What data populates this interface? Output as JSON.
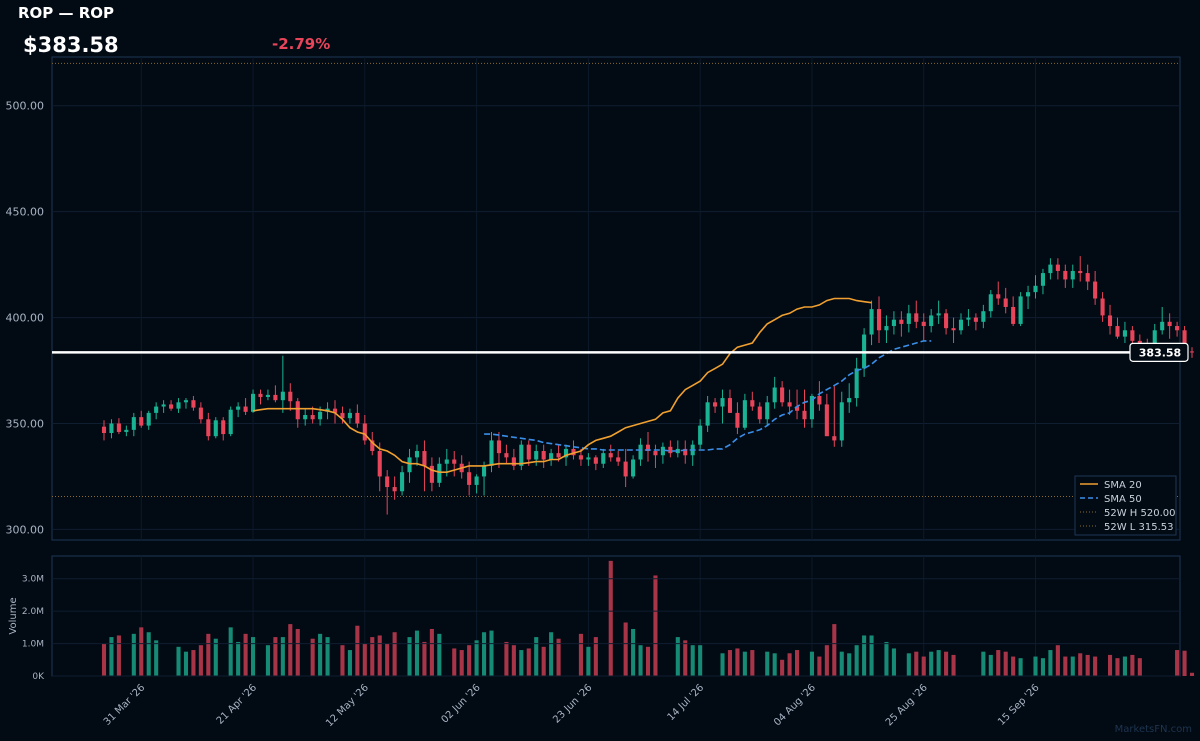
{
  "header": {
    "title": "ROP — ROP",
    "price": "$383.58",
    "change": "-2.79%",
    "change_color": "#e8455a"
  },
  "watermark": "MarketsFN.com",
  "colors": {
    "background": "#020a14",
    "up": "#19b394",
    "down": "#e8455a",
    "sma20": "#f0a030",
    "sma50": "#3a8ee8",
    "last_price_line": "#ffffff",
    "ref_line": "#8a6a30"
  },
  "chart_data": {
    "type": "candlestick",
    "title": "ROP — ROP",
    "ylim": [
      295,
      523
    ],
    "price_ticks": [
      "300.00",
      "350.00",
      "400.00",
      "450.00",
      "500.00"
    ],
    "volume_ylabel": "Volume",
    "volume_ticks": [
      "0K",
      "1.0M",
      "2.0M",
      "3.0M"
    ],
    "volume_ylim": [
      0,
      3.7
    ],
    "date_labels": [
      {
        "label": "31 Mar '26",
        "index": 5
      },
      {
        "label": "21 Apr '26",
        "index": 20
      },
      {
        "label": "12 May '26",
        "index": 35
      },
      {
        "label": "02 Jun '26",
        "index": 50
      },
      {
        "label": "23 Jun '26",
        "index": 65
      },
      {
        "label": "14 Jul '26",
        "index": 80
      },
      {
        "label": "04 Aug '26",
        "index": 95
      },
      {
        "label": "25 Aug '26",
        "index": 110
      },
      {
        "label": "15 Sep '26",
        "index": 125
      }
    ],
    "last_price": 383.58,
    "last_price_label": "383.58",
    "week52_high": 520.0,
    "week52_low": 315.53,
    "legend": [
      {
        "label": "SMA 20",
        "style": "solid",
        "color": "#f0a030"
      },
      {
        "label": "SMA 50",
        "style": "dashed",
        "color": "#3a8ee8"
      },
      {
        "label": "52W H 520.00",
        "style": "dotted",
        "color": "#8a6a30"
      },
      {
        "label": "52W L 315.53",
        "style": "dotted",
        "color": "#8a6a30"
      }
    ],
    "legend_position": "bottom-right",
    "candles": [
      [
        348.5,
        351.5,
        342,
        345.5,
        1.0
      ],
      [
        345.5,
        352,
        343,
        350,
        1.2
      ],
      [
        350,
        352.5,
        345,
        346,
        1.25
      ],
      [
        346,
        349,
        344,
        347,
        0
      ],
      [
        347,
        355,
        344,
        353,
        1.3
      ],
      [
        353,
        356,
        348,
        349,
        1.5
      ],
      [
        349,
        356,
        347,
        355,
        1.35
      ],
      [
        355,
        360,
        352,
        358,
        1.1
      ],
      [
        358,
        361,
        355,
        359,
        0
      ],
      [
        359,
        361,
        356,
        357,
        0
      ],
      [
        357,
        362,
        355,
        360,
        0.9
      ],
      [
        360,
        362,
        357,
        361,
        0.75
      ],
      [
        361,
        363,
        356,
        357.5,
        0.8
      ],
      [
        357.5,
        360,
        350,
        352,
        0.95
      ],
      [
        352,
        355,
        342,
        344,
        1.3
      ],
      [
        344,
        353,
        343,
        351.5,
        1.15
      ],
      [
        351.5,
        353,
        342,
        345,
        0
      ],
      [
        345,
        358,
        344,
        356.5,
        1.5
      ],
      [
        356.5,
        360,
        353,
        358,
        1.05
      ],
      [
        358,
        362,
        354,
        355.5,
        1.3
      ],
      [
        355.5,
        366,
        355,
        364,
        1.2
      ],
      [
        364,
        366,
        359,
        362.5,
        0
      ],
      [
        362.5,
        366,
        361,
        363.5,
        0.95
      ],
      [
        363.5,
        368,
        360,
        361,
        1.2
      ],
      [
        361,
        382,
        355,
        365,
        1.2
      ],
      [
        365,
        369,
        356,
        360.5,
        1.6
      ],
      [
        360.5,
        362,
        348,
        352,
        1.45
      ],
      [
        352,
        357,
        349,
        354,
        0
      ],
      [
        354,
        358,
        350,
        352,
        1.15
      ],
      [
        352,
        358,
        349,
        355.5,
        1.3
      ],
      [
        355.5,
        360,
        352,
        357,
        1.2
      ],
      [
        357,
        361,
        350,
        355,
        0
      ],
      [
        355,
        358,
        350,
        352.5,
        0.95
      ],
      [
        352.5,
        357,
        350,
        355,
        0.8
      ],
      [
        355,
        359,
        348,
        350,
        1.55
      ],
      [
        350,
        354,
        340,
        342,
        1.0
      ],
      [
        342,
        346,
        335,
        337,
        1.2
      ],
      [
        337,
        341,
        318,
        325,
        1.25
      ],
      [
        325,
        328,
        307,
        320,
        1.0
      ],
      [
        320,
        325,
        314,
        318,
        1.35
      ],
      [
        318,
        330,
        316,
        327,
        0
      ],
      [
        327,
        338,
        322,
        334,
        1.2
      ],
      [
        334,
        340,
        330,
        337,
        1.4
      ],
      [
        337,
        342,
        318,
        330,
        1.05
      ],
      [
        330,
        334,
        318,
        322,
        1.45
      ],
      [
        322,
        334,
        320,
        331,
        1.3
      ],
      [
        331,
        338,
        325,
        333,
        0
      ],
      [
        333,
        337,
        325,
        331,
        0.85
      ],
      [
        331,
        335,
        324,
        327,
        0.8
      ],
      [
        327,
        332,
        316,
        321,
        0.95
      ],
      [
        321,
        326,
        317,
        325,
        1.1
      ],
      [
        325,
        332,
        316,
        330,
        1.35
      ],
      [
        330,
        346,
        327,
        342,
        1.4
      ],
      [
        342,
        346,
        329,
        336,
        0
      ],
      [
        336,
        340,
        331,
        334,
        1.05
      ],
      [
        334,
        338,
        328,
        330,
        0.95
      ],
      [
        330,
        342,
        328,
        340,
        0.8
      ],
      [
        340,
        342,
        330,
        333,
        0.85
      ],
      [
        333,
        340,
        330,
        337,
        1.2
      ],
      [
        337,
        340,
        329,
        333,
        0.9
      ],
      [
        333,
        338,
        330,
        336,
        1.35
      ],
      [
        336,
        340,
        332,
        334,
        1.15
      ],
      [
        334,
        340,
        330,
        338,
        0
      ],
      [
        338,
        342,
        333,
        335,
        0
      ],
      [
        335,
        338,
        330,
        333,
        1.3
      ],
      [
        333,
        336,
        330,
        334,
        0.9
      ],
      [
        334,
        335,
        328,
        331,
        1.2
      ],
      [
        331,
        338,
        329,
        336,
        0
      ],
      [
        336,
        340,
        332,
        334,
        3.55
      ],
      [
        334,
        337,
        330,
        332,
        0
      ],
      [
        332,
        338,
        320,
        325,
        1.65
      ],
      [
        325,
        335,
        324,
        333,
        1.45
      ],
      [
        333,
        343,
        330,
        340,
        0.95
      ],
      [
        340,
        346,
        332,
        337,
        0.9
      ],
      [
        337,
        340,
        329,
        335,
        3.1
      ],
      [
        335,
        341,
        331,
        339,
        0
      ],
      [
        339,
        342,
        334,
        336,
        0
      ],
      [
        336,
        342,
        334,
        338,
        1.2
      ],
      [
        338,
        342,
        331,
        335,
        1.1
      ],
      [
        335,
        342,
        330,
        340,
        0.95
      ],
      [
        340,
        352,
        338,
        349,
        0.95
      ],
      [
        349,
        363,
        346,
        360,
        0
      ],
      [
        360,
        362,
        355,
        358,
        0
      ],
      [
        358,
        366,
        350,
        362,
        0.7
      ],
      [
        362,
        366,
        355,
        355,
        0.8
      ],
      [
        355,
        360,
        345,
        348,
        0.85
      ],
      [
        348,
        364,
        347,
        361,
        0.75
      ],
      [
        361,
        365,
        356,
        358,
        0.8
      ],
      [
        358,
        360,
        350,
        352,
        0
      ],
      [
        352,
        363,
        349,
        360,
        0.75
      ],
      [
        360,
        372,
        357,
        367,
        0.7
      ],
      [
        367,
        370,
        358,
        360,
        0.5
      ],
      [
        360,
        366,
        354,
        358,
        0.7
      ],
      [
        358,
        366,
        352,
        356,
        0.8
      ],
      [
        356,
        366,
        348,
        352,
        0
      ],
      [
        352,
        364,
        348,
        363,
        0.75
      ],
      [
        363,
        370,
        356,
        359,
        0.6
      ],
      [
        359,
        364,
        345,
        344,
        0.95
      ],
      [
        344,
        368,
        339,
        342,
        1.6
      ],
      [
        342,
        365,
        339,
        360,
        0.75
      ],
      [
        360,
        369,
        355,
        362,
        0.7
      ],
      [
        362,
        381,
        358,
        376,
        0.95
      ],
      [
        376,
        395,
        372,
        392,
        1.25
      ],
      [
        392,
        408,
        387,
        404,
        1.25
      ],
      [
        404,
        410,
        388,
        394,
        0
      ],
      [
        394,
        401,
        388,
        396,
        1.05
      ],
      [
        396,
        403,
        392,
        399,
        0.85
      ],
      [
        399,
        403,
        391,
        397,
        0
      ],
      [
        397,
        406,
        393,
        402,
        0.7
      ],
      [
        402,
        408,
        395,
        398,
        0.75
      ],
      [
        398,
        402,
        389,
        396,
        0.6
      ],
      [
        396,
        404,
        393,
        401,
        0.75
      ],
      [
        401,
        408,
        397,
        402,
        0.8
      ],
      [
        402,
        404,
        392,
        395,
        0.75
      ],
      [
        395,
        400,
        388,
        394,
        0.65
      ],
      [
        394,
        402,
        392,
        399,
        0
      ],
      [
        399,
        404,
        396,
        400,
        0
      ],
      [
        400,
        402,
        394,
        398,
        0
      ],
      [
        398,
        406,
        395,
        403,
        0.75
      ],
      [
        403,
        413,
        400,
        411,
        0.65
      ],
      [
        411,
        417,
        406,
        409,
        0.8
      ],
      [
        409,
        414,
        402,
        405,
        0.75
      ],
      [
        405,
        410,
        396,
        397,
        0.6
      ],
      [
        397,
        412,
        396,
        410,
        0.55
      ],
      [
        410,
        415,
        404,
        412,
        0
      ],
      [
        412,
        420,
        409,
        415,
        0.6
      ],
      [
        415,
        423,
        411,
        421,
        0.55
      ],
      [
        421,
        428,
        418,
        425,
        0.8
      ],
      [
        425,
        428,
        418,
        422,
        0.95
      ],
      [
        422,
        425,
        414,
        418,
        0.6
      ],
      [
        418,
        425,
        414,
        422,
        0.6
      ],
      [
        422,
        429,
        417,
        421,
        0.7
      ],
      [
        421,
        425,
        413,
        417,
        0.65
      ],
      [
        417,
        422,
        406,
        409,
        0.6
      ],
      [
        409,
        412,
        398,
        401,
        0
      ],
      [
        401,
        406,
        392,
        396,
        0.65
      ],
      [
        396,
        400,
        390,
        391,
        0.55
      ],
      [
        391,
        398,
        388,
        394,
        0.6
      ],
      [
        394,
        396,
        387,
        389,
        0.65
      ],
      [
        389,
        392,
        383,
        386,
        0.55
      ],
      [
        386,
        390,
        381,
        385,
        0
      ],
      [
        385,
        397,
        383,
        394,
        0
      ],
      [
        394,
        405,
        392,
        398,
        0
      ],
      [
        398,
        402,
        390,
        396,
        0
      ],
      [
        396,
        398,
        391,
        394,
        0.8
      ],
      [
        394,
        396,
        385,
        384,
        0.78
      ],
      [
        384,
        386,
        381,
        383.58,
        0.1
      ]
    ],
    "visible_range": [
      0,
      137
    ],
    "sma20_start": 20,
    "sma50_start": 51,
    "sma20": [
      356,
      356.5,
      357,
      357,
      357,
      357,
      357,
      357,
      357,
      356.5,
      356,
      355,
      352,
      348,
      346,
      345,
      341,
      338,
      337,
      335,
      332,
      331,
      331,
      330,
      328,
      327,
      327,
      328,
      329,
      330,
      330,
      330,
      330.5,
      331,
      331,
      331,
      331,
      331.5,
      332,
      332,
      333,
      333,
      335,
      336,
      337,
      340,
      342,
      343,
      344,
      346,
      348,
      349,
      350,
      351,
      352,
      355,
      356,
      362,
      366,
      368,
      370,
      374,
      376,
      378,
      383,
      386,
      387,
      388,
      393,
      397,
      399,
      401,
      402,
      404,
      405,
      405,
      406,
      408,
      409,
      409,
      409,
      408,
      407.5,
      407
    ],
    "sma50": [
      345,
      345,
      344.5,
      344,
      343.5,
      343,
      342.5,
      342,
      341,
      340.5,
      340,
      339.5,
      339,
      338.5,
      338,
      338,
      337.5,
      337.5,
      337.5,
      337.5,
      337.5,
      337.5,
      337.5,
      337.5,
      337.5,
      337,
      337,
      337.5,
      337.5,
      337.5,
      337.5,
      338,
      338,
      340,
      343,
      345,
      346,
      347,
      349,
      352,
      354,
      355,
      358,
      360,
      361,
      364,
      366,
      368,
      370,
      373,
      375,
      376,
      378,
      381,
      383,
      385,
      386,
      387,
      388,
      389,
      389
    ]
  }
}
